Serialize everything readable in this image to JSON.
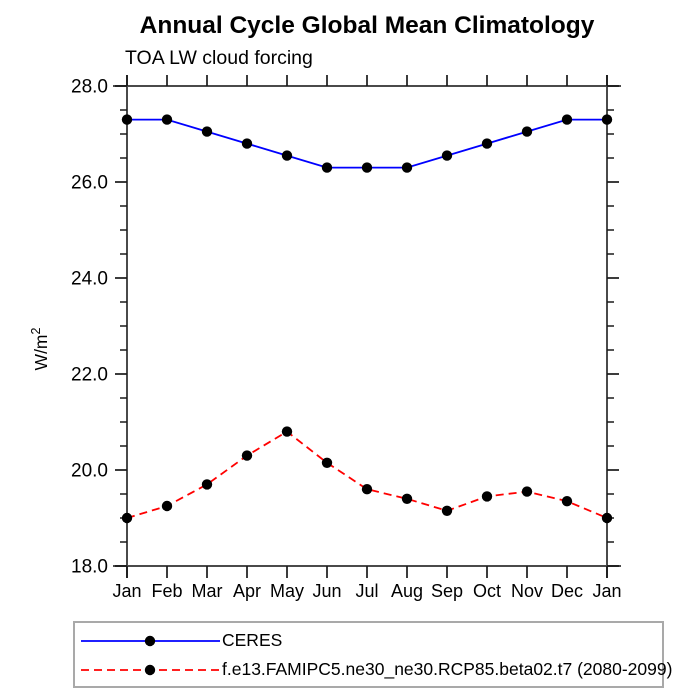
{
  "title": "Annual Cycle Global Mean Climatology",
  "subtitle": "TOA LW cloud forcing",
  "y_axis": {
    "label_base": "W/m",
    "label_sup": "2",
    "tick_labels": [
      "18.0",
      "20.0",
      "22.0",
      "24.0",
      "26.0",
      "28.0"
    ]
  },
  "chart_data": {
    "type": "line",
    "title": "Annual Cycle Global Mean Climatology",
    "subtitle": "TOA LW cloud forcing",
    "xlabel": "",
    "ylabel": "W/m^2",
    "ylim": [
      18.0,
      28.0
    ],
    "y_major_tick_step": 2.0,
    "y_minor_tick_step": 0.5,
    "grid": false,
    "legend_position": "bottom-left-outside",
    "categories": [
      "Jan",
      "Feb",
      "Mar",
      "Apr",
      "May",
      "Jun",
      "Jul",
      "Aug",
      "Sep",
      "Oct",
      "Nov",
      "Dec",
      "Jan"
    ],
    "series": [
      {
        "name": "CERES",
        "line_color": "#0000ff",
        "line_style": "solid",
        "marker": "filled-circle",
        "marker_color": "#000000",
        "values": [
          27.3,
          27.3,
          27.05,
          26.8,
          26.55,
          26.3,
          26.3,
          26.3,
          26.55,
          26.8,
          27.05,
          27.3,
          27.3
        ]
      },
      {
        "name": "f.e13.FAMIPC5.ne30_ne30.RCP85.beta02.t7 (2080-2099)",
        "line_color": "#ff0000",
        "line_style": "dashed",
        "marker": "filled-circle",
        "marker_color": "#000000",
        "values": [
          19.0,
          19.25,
          19.7,
          20.3,
          20.8,
          20.15,
          19.6,
          19.4,
          19.15,
          19.45,
          19.55,
          19.35,
          19.0
        ]
      }
    ]
  },
  "colors": {
    "background": "#ffffff",
    "frame": "#4a4a4a",
    "tick": "#1a1a1a",
    "text": "#000000",
    "legend_border": "#a9a9a9"
  }
}
